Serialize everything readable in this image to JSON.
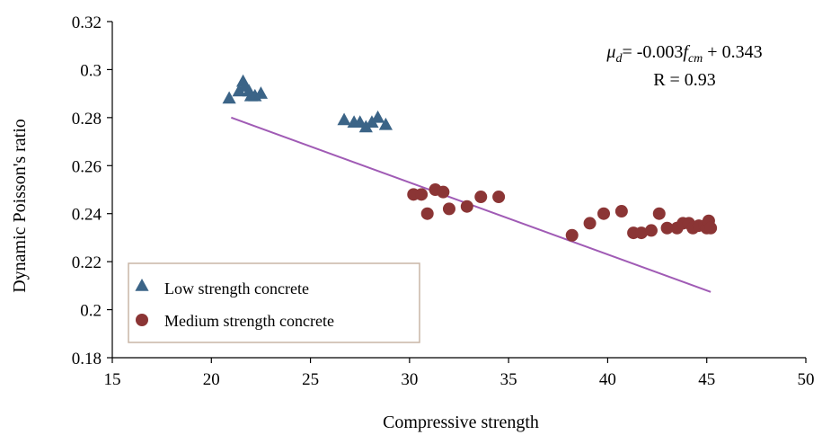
{
  "chart_data": {
    "type": "scatter",
    "xlabel": "Compressive strength",
    "ylabel": "Dynamic Poisson's ratio",
    "xlim": [
      15,
      50
    ],
    "ylim": [
      0.18,
      0.32
    ],
    "x_ticks": [
      15,
      20,
      25,
      30,
      35,
      40,
      45,
      50
    ],
    "y_ticks": [
      0.18,
      0.2,
      0.22,
      0.24,
      0.26,
      0.28,
      0.3,
      0.32
    ],
    "x_tick_labels": [
      "15",
      "20",
      "25",
      "30",
      "35",
      "40",
      "45",
      "50"
    ],
    "y_tick_labels": [
      "0.18",
      "0.2",
      "0.22",
      "0.24",
      "0.26",
      "0.28",
      "0.3",
      "0.32"
    ],
    "grid": false,
    "legend_position": "bottom-left",
    "series": [
      {
        "name": "Low strength concrete",
        "marker": "triangle",
        "color": "#3b6487",
        "points": [
          [
            20.9,
            0.288
          ],
          [
            21.4,
            0.291
          ],
          [
            21.6,
            0.295
          ],
          [
            21.7,
            0.293
          ],
          [
            21.9,
            0.291
          ],
          [
            22.0,
            0.289
          ],
          [
            22.2,
            0.289
          ],
          [
            22.5,
            0.29
          ],
          [
            26.7,
            0.279
          ],
          [
            27.2,
            0.278
          ],
          [
            27.5,
            0.278
          ],
          [
            27.8,
            0.276
          ],
          [
            28.1,
            0.278
          ],
          [
            28.4,
            0.28
          ],
          [
            28.8,
            0.277
          ]
        ]
      },
      {
        "name": "Medium strength concrete",
        "marker": "circle",
        "color": "#8b3535",
        "points": [
          [
            30.2,
            0.248
          ],
          [
            30.6,
            0.248
          ],
          [
            30.9,
            0.24
          ],
          [
            31.3,
            0.25
          ],
          [
            31.7,
            0.249
          ],
          [
            32.0,
            0.242
          ],
          [
            32.9,
            0.243
          ],
          [
            33.6,
            0.247
          ],
          [
            34.5,
            0.247
          ],
          [
            38.2,
            0.231
          ],
          [
            39.1,
            0.236
          ],
          [
            39.8,
            0.24
          ],
          [
            40.7,
            0.241
          ],
          [
            41.3,
            0.232
          ],
          [
            41.7,
            0.232
          ],
          [
            42.2,
            0.233
          ],
          [
            42.6,
            0.24
          ],
          [
            43.0,
            0.234
          ],
          [
            43.5,
            0.234
          ],
          [
            43.8,
            0.236
          ],
          [
            44.1,
            0.236
          ],
          [
            44.3,
            0.234
          ],
          [
            44.6,
            0.235
          ],
          [
            44.9,
            0.235
          ],
          [
            45.0,
            0.234
          ],
          [
            45.1,
            0.237
          ],
          [
            45.2,
            0.234
          ]
        ]
      }
    ],
    "trendline": {
      "color": "#a05bb5",
      "slope": -0.003,
      "intercept": 0.343,
      "x_range": [
        21,
        45.2
      ]
    },
    "annotation": {
      "eq_mu": "μ",
      "eq_sub_d": "d",
      "eq_mid": "= -0.003",
      "eq_f": "f",
      "eq_sub_cm": "cm",
      "eq_end": " + 0.343",
      "r_text": "R = 0.93"
    }
  }
}
